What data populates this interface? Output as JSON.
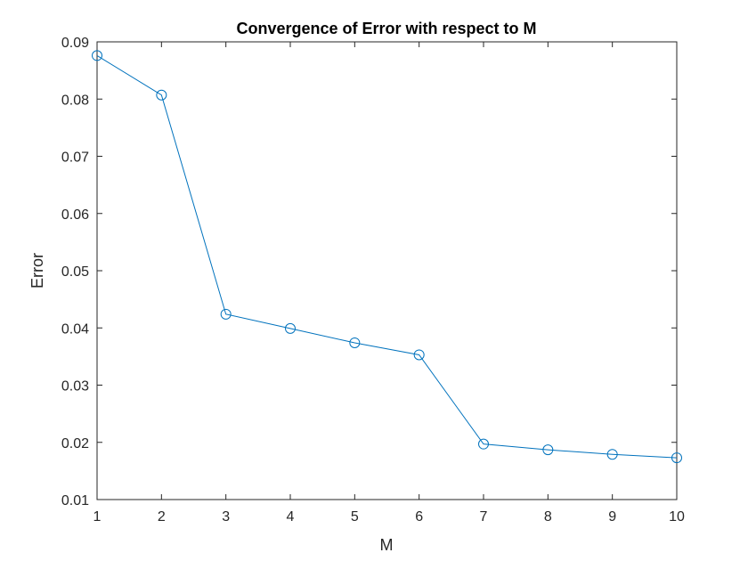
{
  "chart_data": {
    "type": "line",
    "title": "Convergence of Error with respect to M",
    "xlabel": "M",
    "ylabel": "Error",
    "xlim": [
      1,
      10
    ],
    "ylim": [
      0.01,
      0.09
    ],
    "xticks": [
      "1",
      "2",
      "3",
      "4",
      "5",
      "6",
      "7",
      "8",
      "9",
      "10"
    ],
    "yticks": [
      "0.01",
      "0.02",
      "0.03",
      "0.04",
      "0.05",
      "0.06",
      "0.07",
      "0.08",
      "0.09"
    ],
    "grid": false,
    "marker": "circle",
    "series": [
      {
        "color": "#0072BD",
        "x": [
          1,
          2,
          3,
          4,
          5,
          6,
          7,
          8,
          9,
          10
        ],
        "y": [
          0.0876,
          0.0807,
          0.0424,
          0.0399,
          0.0374,
          0.0353,
          0.0197,
          0.0187,
          0.0179,
          0.0173
        ]
      }
    ]
  }
}
